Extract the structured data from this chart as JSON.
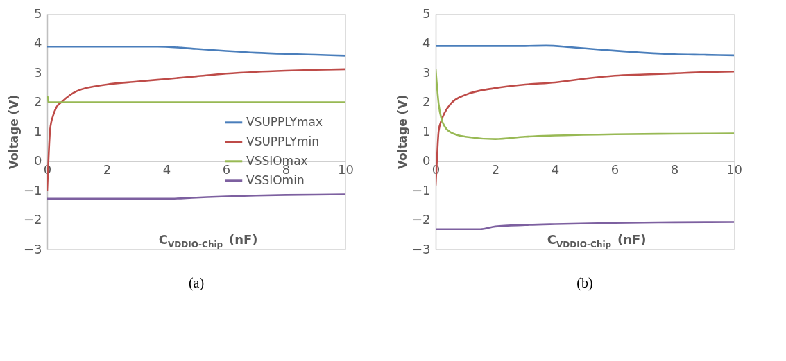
{
  "chart_data": [
    {
      "type": "line",
      "title": "(a)",
      "xlabel": "C$_{VDDIO-Chip}$ (nF)",
      "ylabel": "Voltage (V)",
      "xlim": [
        0,
        10
      ],
      "ylim": [
        -3,
        5
      ],
      "xticks": [
        0,
        2,
        4,
        6,
        8,
        10
      ],
      "yticks": [
        -3,
        -2,
        -1,
        0,
        1,
        2,
        3,
        4,
        5
      ],
      "grid": false,
      "legend": "right",
      "line_style": "solid",
      "marker": "none",
      "series": [
        {
          "name": "VSUPPLYmax",
          "color": "#4a7ebb",
          "x": [
            0,
            1,
            2,
            3,
            3.7,
            4.5,
            5,
            6,
            7,
            8,
            9,
            10
          ],
          "values": [
            3.89,
            3.89,
            3.89,
            3.89,
            3.89,
            3.85,
            3.81,
            3.74,
            3.68,
            3.64,
            3.61,
            3.58
          ]
        },
        {
          "name": "VSUPPLYmin",
          "color": "#be4b48",
          "x": [
            0,
            0.05,
            0.1,
            0.2,
            0.3,
            0.5,
            1,
            2,
            3,
            4,
            5,
            6,
            7,
            8,
            9,
            10
          ],
          "values": [
            -0.99,
            0.2,
            1.09,
            1.55,
            1.81,
            2.02,
            2.38,
            2.6,
            2.7,
            2.79,
            2.88,
            2.97,
            3.03,
            3.07,
            3.1,
            3.12
          ]
        },
        {
          "name": "VSSIOmax",
          "color": "#98b954",
          "x": [
            0,
            0.03,
            0.04,
            10
          ],
          "values": [
            2.17,
            2.17,
            2.0,
            2.0
          ]
        },
        {
          "name": "VSSIOmin",
          "color": "#7d60a0",
          "x": [
            0,
            2,
            4,
            5,
            6,
            7,
            8,
            9,
            10
          ],
          "values": [
            -1.28,
            -1.28,
            -1.28,
            -1.24,
            -1.2,
            -1.17,
            -1.15,
            -1.14,
            -1.13
          ]
        }
      ]
    },
    {
      "type": "line",
      "title": "(b)",
      "xlabel": "C$_{VDDIO-Chip}$ (nF)",
      "ylabel": "Voltage (V)",
      "xlim": [
        0,
        10
      ],
      "ylim": [
        -3,
        5
      ],
      "xticks": [
        0,
        2,
        4,
        6,
        8,
        10
      ],
      "yticks": [
        -3,
        -2,
        -1,
        0,
        1,
        2,
        3,
        4,
        5
      ],
      "grid": false,
      "legend": "right",
      "line_style": "solid",
      "marker": "none",
      "series": [
        {
          "name": "VSUPPLYmax",
          "color": "#4a7ebb",
          "x": [
            0,
            1,
            2,
            3,
            3.7,
            4.5,
            5,
            6,
            7,
            8,
            9,
            10
          ],
          "values": [
            3.91,
            3.91,
            3.91,
            3.91,
            3.92,
            3.87,
            3.83,
            3.75,
            3.68,
            3.63,
            3.61,
            3.59
          ]
        },
        {
          "name": "VSUPPLYmin",
          "color": "#be4b48",
          "x": [
            0,
            0.05,
            0.1,
            0.2,
            0.3,
            0.5,
            1,
            2,
            3,
            4,
            5,
            6,
            7,
            8,
            9,
            10
          ],
          "values": [
            -0.82,
            0.2,
            1.02,
            1.4,
            1.64,
            1.94,
            2.25,
            2.48,
            2.6,
            2.67,
            2.8,
            2.9,
            2.94,
            2.98,
            3.02,
            3.04
          ]
        },
        {
          "name": "VSSIOmax",
          "color": "#98b954",
          "x": [
            0,
            0.1,
            0.2,
            0.3,
            0.5,
            1,
            2,
            3,
            4,
            6,
            8,
            10
          ],
          "values": [
            3.13,
            1.94,
            1.41,
            1.18,
            0.98,
            0.83,
            0.75,
            0.83,
            0.87,
            0.91,
            0.93,
            0.94
          ]
        },
        {
          "name": "VSSIOmin",
          "color": "#7d60a0",
          "x": [
            0,
            1.5,
            2,
            3,
            4,
            6,
            8,
            10
          ],
          "values": [
            -2.31,
            -2.31,
            -2.22,
            -2.17,
            -2.14,
            -2.1,
            -2.08,
            -2.07
          ]
        }
      ]
    }
  ]
}
